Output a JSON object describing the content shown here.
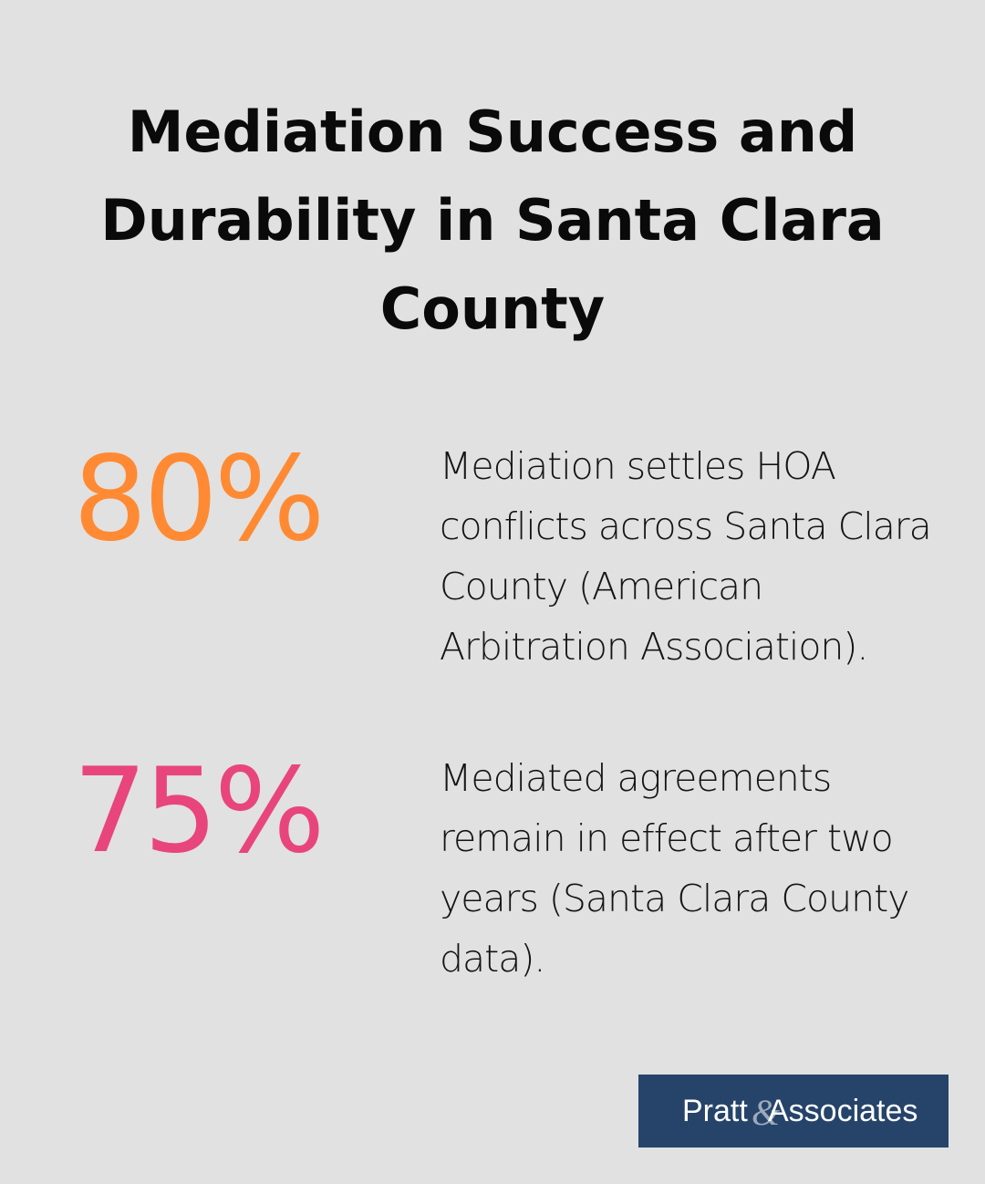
{
  "title": "Mediation Success and Durability in Santa Clara County",
  "stats": [
    {
      "value": "80%",
      "color": "#ff8a33",
      "description": "Mediation settles HOA conflicts across Santa Clara County (American Arbitration Association)."
    },
    {
      "value": "75%",
      "color": "#e8457c",
      "description": "Mediated agreements remain in effect after two years (Santa Clara County data)."
    }
  ],
  "logo": {
    "text": "Pratt&Associates",
    "background": "#26446a"
  }
}
